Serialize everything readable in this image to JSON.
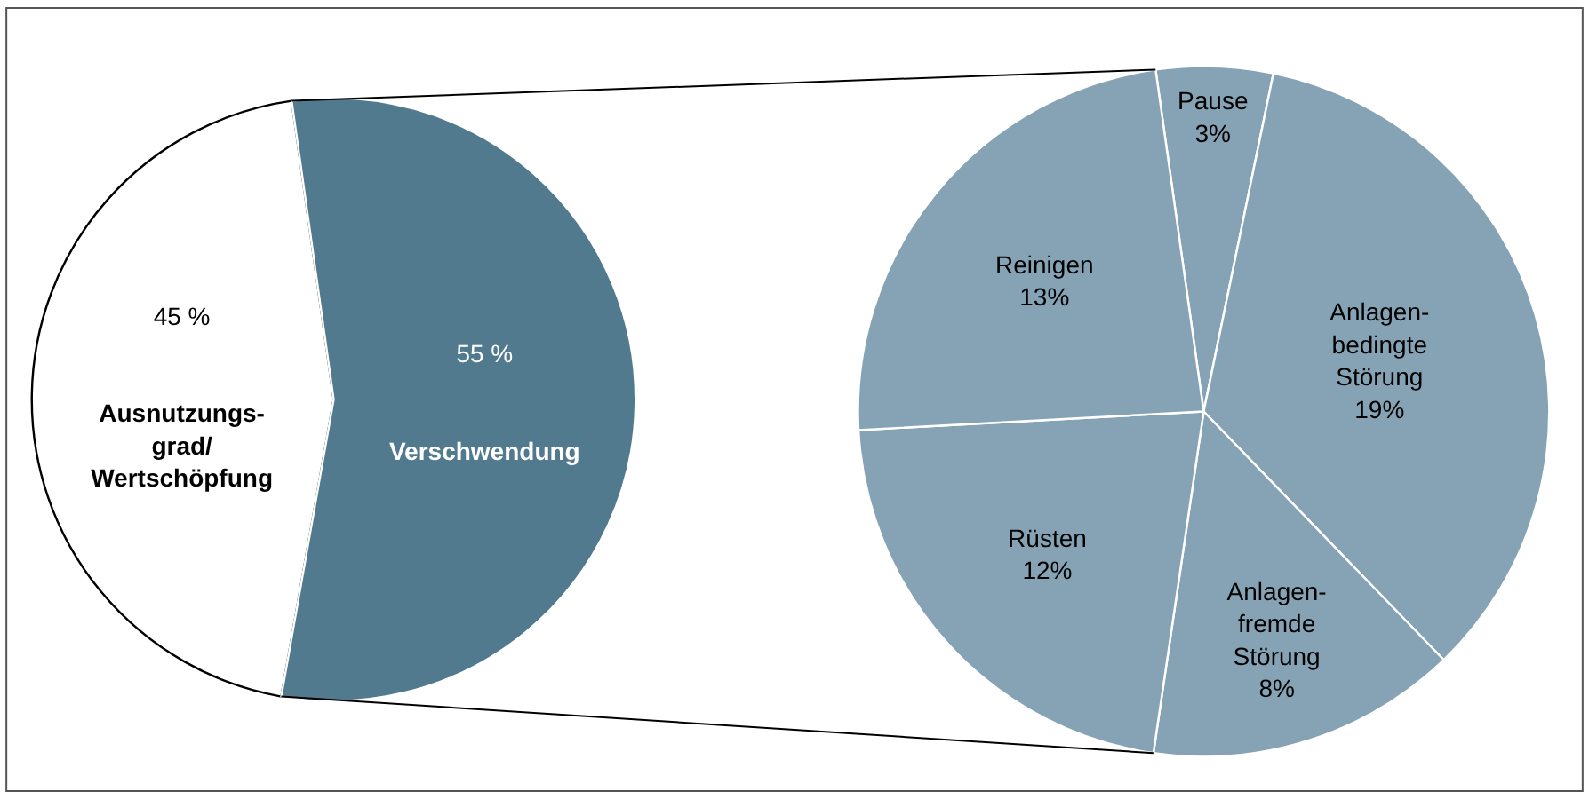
{
  "chart_data": [
    {
      "type": "pie",
      "categories": [
        "Ausnutzungs-\ngrad/\nWertschöpfung",
        "Verschwendung"
      ],
      "values": [
        45,
        55
      ],
      "value_labels": [
        "45 %",
        "55 %"
      ],
      "colors": [
        "#ffffff",
        "#527a8f"
      ]
    },
    {
      "type": "pie",
      "categories": [
        "Pause",
        "Anlagen-\nbedingte\nStörung",
        "Anlagen-\nfremde\nStörung",
        "Rüsten",
        "Reinigen"
      ],
      "values": [
        3,
        19,
        8,
        12,
        13
      ],
      "value_labels": [
        "3%",
        "19%",
        "8%",
        "12%",
        "13%"
      ],
      "colors": [
        "#85a3b5",
        "#85a3b5",
        "#85a3b5",
        "#85a3b5",
        "#85a3b5"
      ]
    }
  ]
}
